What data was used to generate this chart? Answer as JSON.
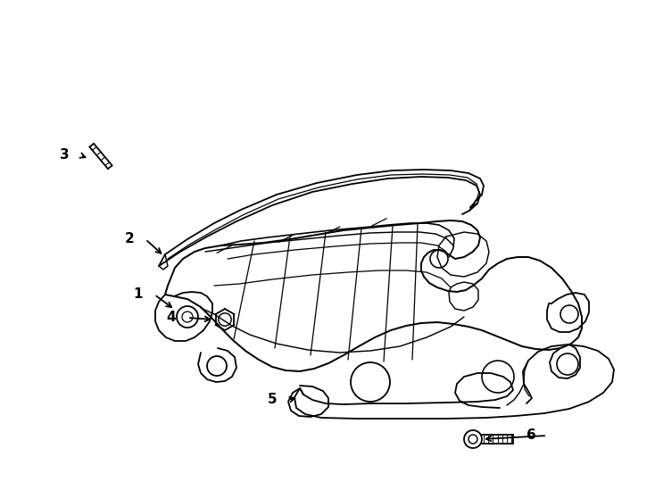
{
  "bg_color": "#ffffff",
  "line_color": "#000000",
  "lw": 1.3,
  "fig_width": 7.34,
  "fig_height": 5.4,
  "dpi": 100
}
